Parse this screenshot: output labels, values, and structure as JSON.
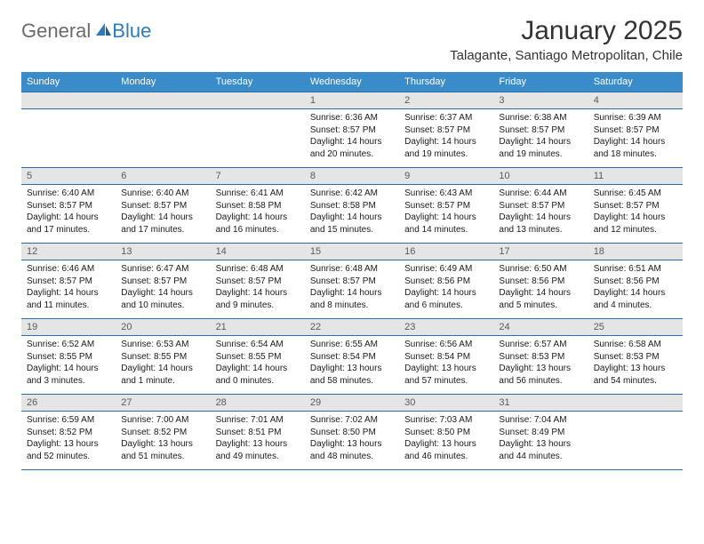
{
  "brand": {
    "part1": "General",
    "part2": "Blue"
  },
  "title": "January 2025",
  "location": "Talagante, Santiago Metropolitan, Chile",
  "colors": {
    "header_bg": "#3a8bc9",
    "header_text": "#ffffff",
    "daynum_bg": "#e5e5e5",
    "daynum_text": "#5a5a5a",
    "rule": "#2b6ca3",
    "brand_grey": "#6b6b6b",
    "brand_blue": "#2b7bbf"
  },
  "day_labels": [
    "Sunday",
    "Monday",
    "Tuesday",
    "Wednesday",
    "Thursday",
    "Friday",
    "Saturday"
  ],
  "weeks": [
    [
      null,
      null,
      null,
      {
        "n": "1",
        "sr": "Sunrise: 6:36 AM",
        "ss": "Sunset: 8:57 PM",
        "d1": "Daylight: 14 hours",
        "d2": "and 20 minutes."
      },
      {
        "n": "2",
        "sr": "Sunrise: 6:37 AM",
        "ss": "Sunset: 8:57 PM",
        "d1": "Daylight: 14 hours",
        "d2": "and 19 minutes."
      },
      {
        "n": "3",
        "sr": "Sunrise: 6:38 AM",
        "ss": "Sunset: 8:57 PM",
        "d1": "Daylight: 14 hours",
        "d2": "and 19 minutes."
      },
      {
        "n": "4",
        "sr": "Sunrise: 6:39 AM",
        "ss": "Sunset: 8:57 PM",
        "d1": "Daylight: 14 hours",
        "d2": "and 18 minutes."
      }
    ],
    [
      {
        "n": "5",
        "sr": "Sunrise: 6:40 AM",
        "ss": "Sunset: 8:57 PM",
        "d1": "Daylight: 14 hours",
        "d2": "and 17 minutes."
      },
      {
        "n": "6",
        "sr": "Sunrise: 6:40 AM",
        "ss": "Sunset: 8:57 PM",
        "d1": "Daylight: 14 hours",
        "d2": "and 17 minutes."
      },
      {
        "n": "7",
        "sr": "Sunrise: 6:41 AM",
        "ss": "Sunset: 8:58 PM",
        "d1": "Daylight: 14 hours",
        "d2": "and 16 minutes."
      },
      {
        "n": "8",
        "sr": "Sunrise: 6:42 AM",
        "ss": "Sunset: 8:58 PM",
        "d1": "Daylight: 14 hours",
        "d2": "and 15 minutes."
      },
      {
        "n": "9",
        "sr": "Sunrise: 6:43 AM",
        "ss": "Sunset: 8:57 PM",
        "d1": "Daylight: 14 hours",
        "d2": "and 14 minutes."
      },
      {
        "n": "10",
        "sr": "Sunrise: 6:44 AM",
        "ss": "Sunset: 8:57 PM",
        "d1": "Daylight: 14 hours",
        "d2": "and 13 minutes."
      },
      {
        "n": "11",
        "sr": "Sunrise: 6:45 AM",
        "ss": "Sunset: 8:57 PM",
        "d1": "Daylight: 14 hours",
        "d2": "and 12 minutes."
      }
    ],
    [
      {
        "n": "12",
        "sr": "Sunrise: 6:46 AM",
        "ss": "Sunset: 8:57 PM",
        "d1": "Daylight: 14 hours",
        "d2": "and 11 minutes."
      },
      {
        "n": "13",
        "sr": "Sunrise: 6:47 AM",
        "ss": "Sunset: 8:57 PM",
        "d1": "Daylight: 14 hours",
        "d2": "and 10 minutes."
      },
      {
        "n": "14",
        "sr": "Sunrise: 6:48 AM",
        "ss": "Sunset: 8:57 PM",
        "d1": "Daylight: 14 hours",
        "d2": "and 9 minutes."
      },
      {
        "n": "15",
        "sr": "Sunrise: 6:48 AM",
        "ss": "Sunset: 8:57 PM",
        "d1": "Daylight: 14 hours",
        "d2": "and 8 minutes."
      },
      {
        "n": "16",
        "sr": "Sunrise: 6:49 AM",
        "ss": "Sunset: 8:56 PM",
        "d1": "Daylight: 14 hours",
        "d2": "and 6 minutes."
      },
      {
        "n": "17",
        "sr": "Sunrise: 6:50 AM",
        "ss": "Sunset: 8:56 PM",
        "d1": "Daylight: 14 hours",
        "d2": "and 5 minutes."
      },
      {
        "n": "18",
        "sr": "Sunrise: 6:51 AM",
        "ss": "Sunset: 8:56 PM",
        "d1": "Daylight: 14 hours",
        "d2": "and 4 minutes."
      }
    ],
    [
      {
        "n": "19",
        "sr": "Sunrise: 6:52 AM",
        "ss": "Sunset: 8:55 PM",
        "d1": "Daylight: 14 hours",
        "d2": "and 3 minutes."
      },
      {
        "n": "20",
        "sr": "Sunrise: 6:53 AM",
        "ss": "Sunset: 8:55 PM",
        "d1": "Daylight: 14 hours",
        "d2": "and 1 minute."
      },
      {
        "n": "21",
        "sr": "Sunrise: 6:54 AM",
        "ss": "Sunset: 8:55 PM",
        "d1": "Daylight: 14 hours",
        "d2": "and 0 minutes."
      },
      {
        "n": "22",
        "sr": "Sunrise: 6:55 AM",
        "ss": "Sunset: 8:54 PM",
        "d1": "Daylight: 13 hours",
        "d2": "and 58 minutes."
      },
      {
        "n": "23",
        "sr": "Sunrise: 6:56 AM",
        "ss": "Sunset: 8:54 PM",
        "d1": "Daylight: 13 hours",
        "d2": "and 57 minutes."
      },
      {
        "n": "24",
        "sr": "Sunrise: 6:57 AM",
        "ss": "Sunset: 8:53 PM",
        "d1": "Daylight: 13 hours",
        "d2": "and 56 minutes."
      },
      {
        "n": "25",
        "sr": "Sunrise: 6:58 AM",
        "ss": "Sunset: 8:53 PM",
        "d1": "Daylight: 13 hours",
        "d2": "and 54 minutes."
      }
    ],
    [
      {
        "n": "26",
        "sr": "Sunrise: 6:59 AM",
        "ss": "Sunset: 8:52 PM",
        "d1": "Daylight: 13 hours",
        "d2": "and 52 minutes."
      },
      {
        "n": "27",
        "sr": "Sunrise: 7:00 AM",
        "ss": "Sunset: 8:52 PM",
        "d1": "Daylight: 13 hours",
        "d2": "and 51 minutes."
      },
      {
        "n": "28",
        "sr": "Sunrise: 7:01 AM",
        "ss": "Sunset: 8:51 PM",
        "d1": "Daylight: 13 hours",
        "d2": "and 49 minutes."
      },
      {
        "n": "29",
        "sr": "Sunrise: 7:02 AM",
        "ss": "Sunset: 8:50 PM",
        "d1": "Daylight: 13 hours",
        "d2": "and 48 minutes."
      },
      {
        "n": "30",
        "sr": "Sunrise: 7:03 AM",
        "ss": "Sunset: 8:50 PM",
        "d1": "Daylight: 13 hours",
        "d2": "and 46 minutes."
      },
      {
        "n": "31",
        "sr": "Sunrise: 7:04 AM",
        "ss": "Sunset: 8:49 PM",
        "d1": "Daylight: 13 hours",
        "d2": "and 44 minutes."
      },
      null
    ]
  ]
}
